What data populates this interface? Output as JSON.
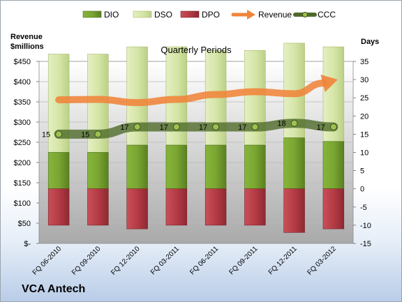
{
  "company": "VCA Antech",
  "chart_data": {
    "type": "bar",
    "subtitle": "Quarterly Periods",
    "left_axis_label": [
      "Revenue",
      "$millions"
    ],
    "right_axis_label": "Days",
    "left_ticks": [
      "$-",
      "$50",
      "$100",
      "$150",
      "$200",
      "$250",
      "$300",
      "$350",
      "$400",
      "$450"
    ],
    "left_ylim": [
      0,
      450
    ],
    "right_ticks": [
      "-15",
      "-10",
      "-5",
      "0",
      "5",
      "10",
      "15",
      "20",
      "25",
      "30",
      "35"
    ],
    "right_ylim": [
      -15,
      35
    ],
    "legend": [
      "DIO",
      "DSO",
      "DPO",
      "Revenue",
      "CCC"
    ],
    "legend_position": "top",
    "categories": [
      "FQ 06-2010",
      "FQ 09-2010",
      "FQ 12-2010",
      "FQ 03-2011",
      "FQ 06-2011",
      "FQ 09-2011",
      "FQ 12-2011",
      "FQ 03-2012"
    ],
    "series": [
      {
        "name": "DIO",
        "axis": "right",
        "values": [
          10,
          10,
          12,
          12,
          12,
          12,
          14,
          13
        ]
      },
      {
        "name": "DSO",
        "axis": "right",
        "values": [
          37,
          37,
          39,
          39,
          38,
          38,
          40,
          39
        ]
      },
      {
        "name": "DPO",
        "axis": "right",
        "values": [
          -10,
          -10,
          -11,
          -10,
          -10,
          -10,
          -12,
          -11
        ]
      },
      {
        "name": "Revenue",
        "axis": "left",
        "values": [
          355,
          356,
          348,
          356,
          368,
          375,
          370,
          405
        ]
      },
      {
        "name": "CCC",
        "axis": "right",
        "values": [
          15,
          15,
          17,
          17,
          17,
          17,
          18,
          17
        ]
      }
    ],
    "ccc_labels": [
      "15",
      "15",
      "17",
      "17",
      "17",
      "17",
      "18",
      "17"
    ],
    "grid": true,
    "colors": {
      "DIO": "#6f9a2a",
      "DSO": "#d6e6a8",
      "DPO": "#b53b45",
      "Revenue": "#f0843a",
      "CCC": "#4f6b2a",
      "plot_bg_top": "#ffffff",
      "plot_bg_bottom": "#a9a9a9"
    }
  }
}
